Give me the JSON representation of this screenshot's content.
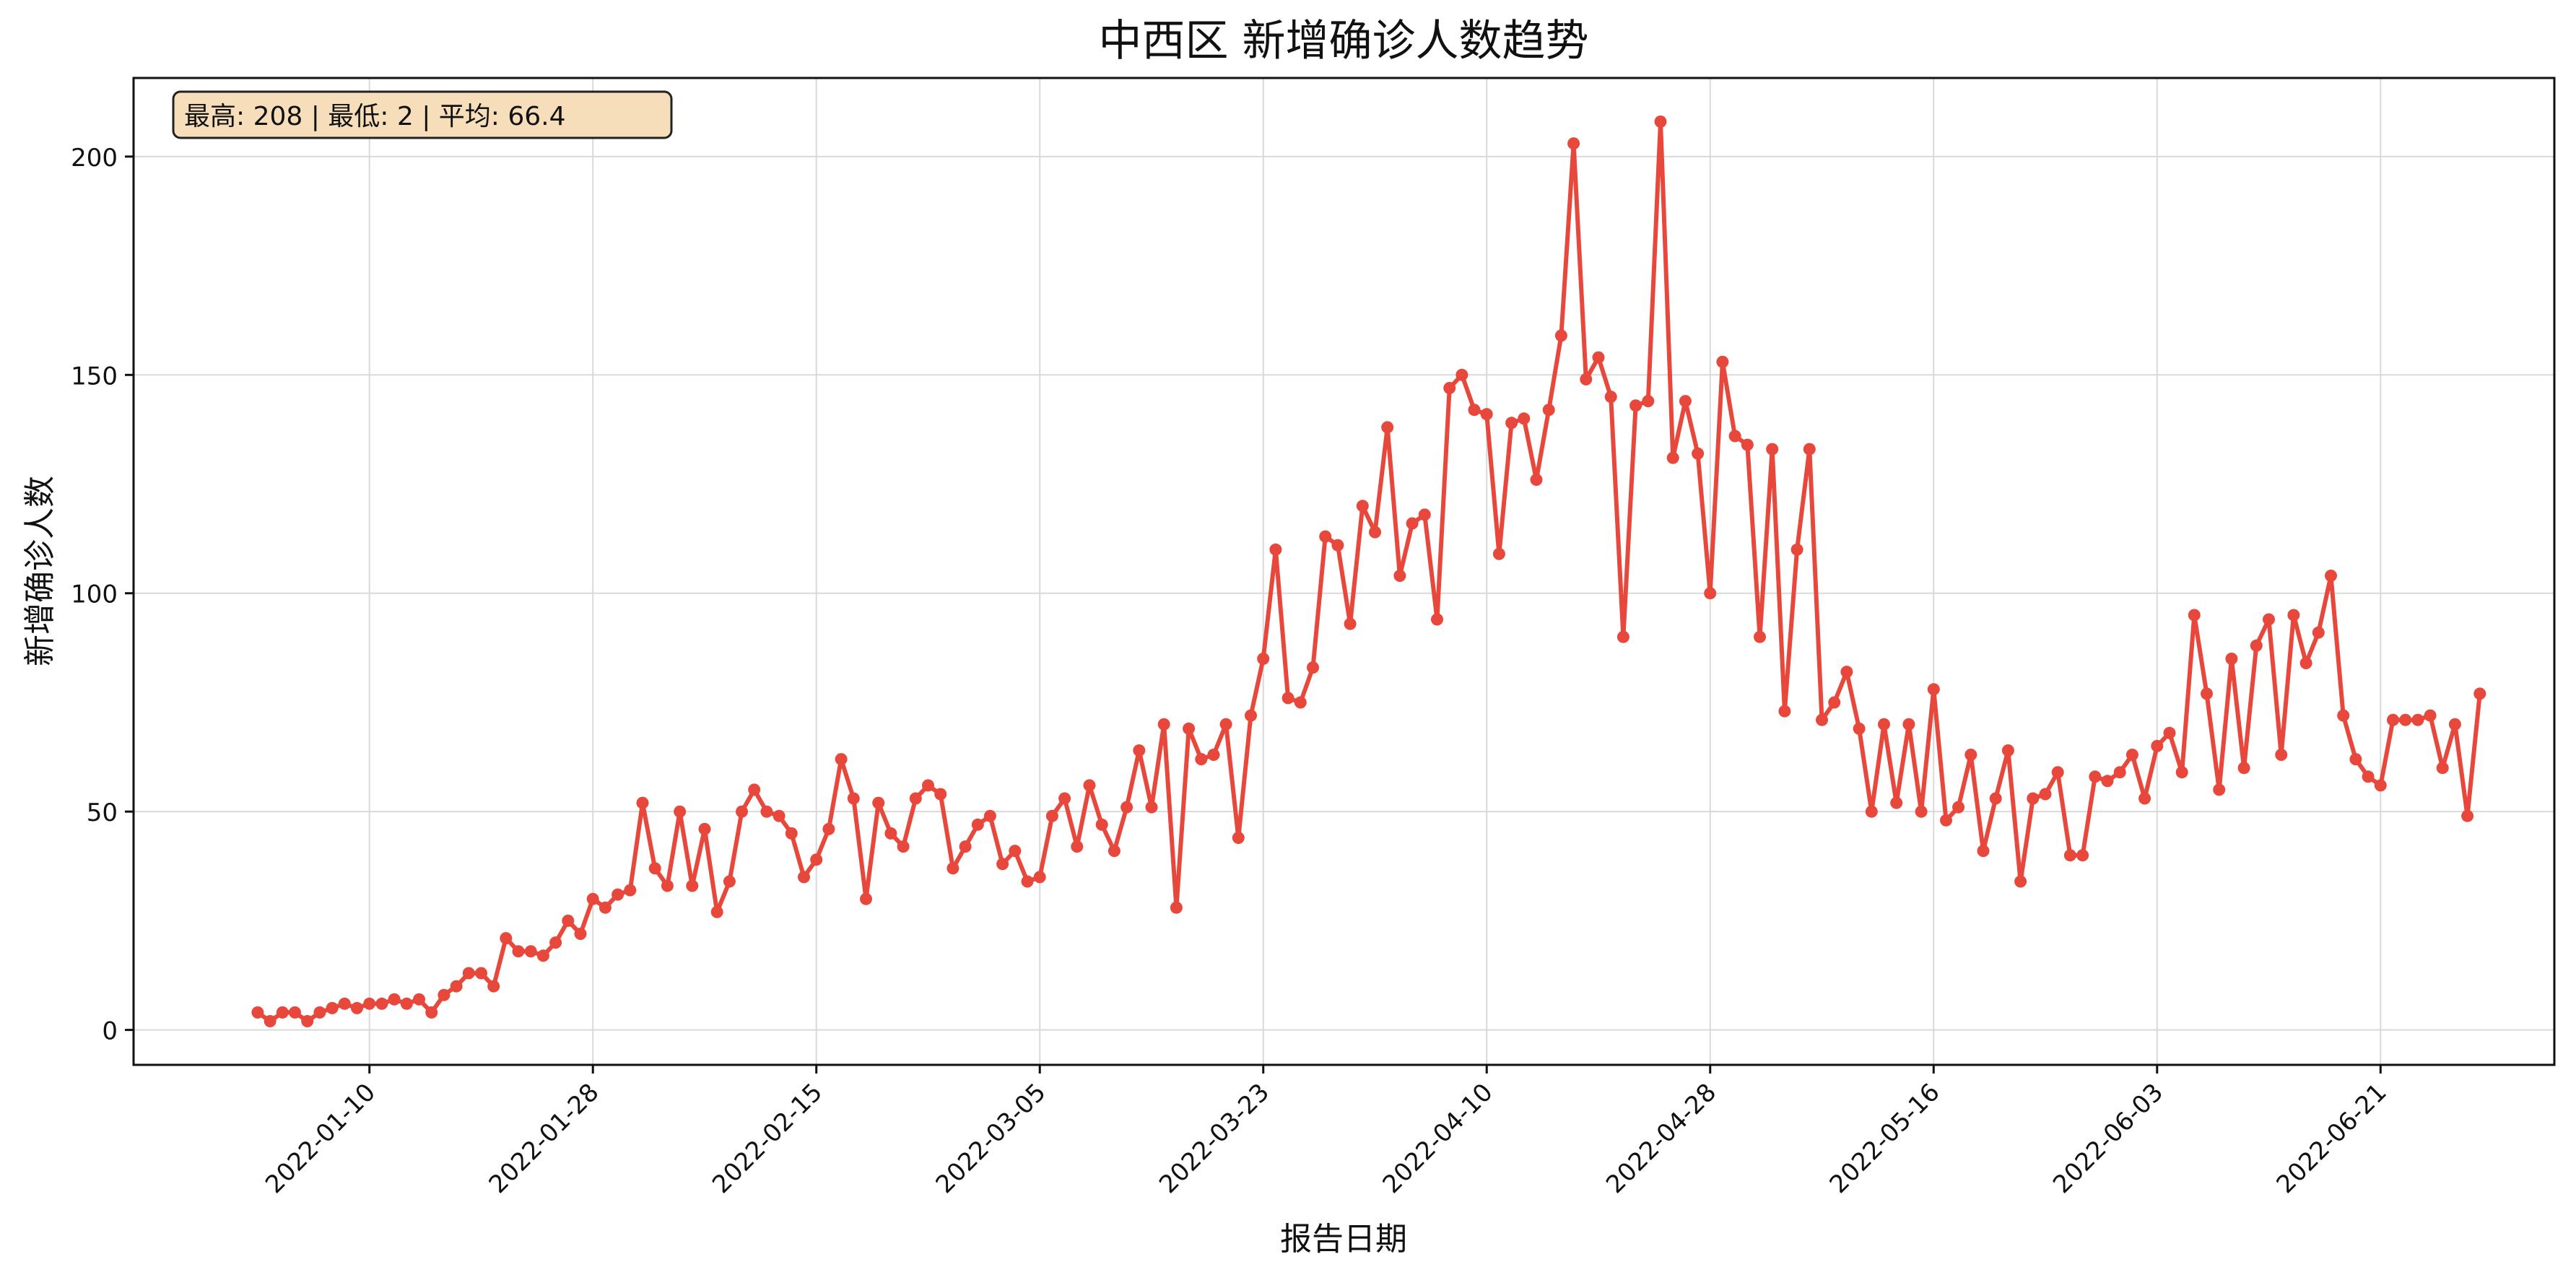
{
  "chart_data": {
    "type": "line",
    "title": "中西区 新增确诊人数趋势",
    "xlabel": "报告日期",
    "ylabel": "新增确诊人数",
    "x_ticks": [
      "2022-01-10",
      "2022-01-28",
      "2022-02-15",
      "2022-03-05",
      "2022-03-23",
      "2022-04-10",
      "2022-04-28",
      "2022-05-16",
      "2022-06-03",
      "2022-06-21"
    ],
    "y_ticks": [
      0,
      50,
      100,
      150,
      200
    ],
    "ylim": [
      -8,
      218
    ],
    "xlim": [
      "2021-12-22",
      "2022-07-05"
    ],
    "grid": true,
    "stats_box": "最高: 208 | 最低: 2 | 平均: 66.4",
    "start_date": "2022-01-01",
    "series": [
      {
        "color": "#e8473c",
        "values": [
          4,
          2,
          4,
          4,
          2,
          4,
          5,
          6,
          5,
          6,
          6,
          7,
          6,
          7,
          4,
          8,
          10,
          13,
          13,
          10,
          21,
          18,
          18,
          17,
          20,
          25,
          22,
          30,
          28,
          31,
          32,
          52,
          37,
          33,
          50,
          33,
          46,
          27,
          34,
          50,
          55,
          50,
          49,
          45,
          35,
          39,
          46,
          62,
          53,
          30,
          52,
          45,
          42,
          53,
          56,
          54,
          37,
          42,
          47,
          49,
          38,
          41,
          34,
          35,
          49,
          53,
          42,
          56,
          47,
          41,
          51,
          64,
          51,
          70,
          28,
          69,
          62,
          63,
          70,
          44,
          72,
          85,
          110,
          76,
          75,
          83,
          113,
          111,
          93,
          120,
          114,
          138,
          104,
          116,
          118,
          94,
          147,
          150,
          142,
          141,
          109,
          139,
          140,
          126,
          142,
          159,
          203,
          149,
          154,
          145,
          90,
          143,
          144,
          208,
          131,
          144,
          132,
          100,
          153,
          136,
          134,
          90,
          133,
          73,
          110,
          133,
          71,
          75,
          82,
          69,
          50,
          70,
          52,
          70,
          50,
          78,
          48,
          51,
          63,
          41,
          53,
          64,
          34,
          53,
          54,
          59,
          40,
          40,
          58,
          57,
          59,
          63,
          53,
          65,
          68,
          59,
          95,
          77,
          55,
          85,
          60,
          88,
          94,
          63,
          95,
          84,
          91,
          104,
          72,
          62,
          58,
          56,
          71,
          71,
          71,
          72,
          60,
          70,
          49,
          77
        ]
      }
    ]
  }
}
